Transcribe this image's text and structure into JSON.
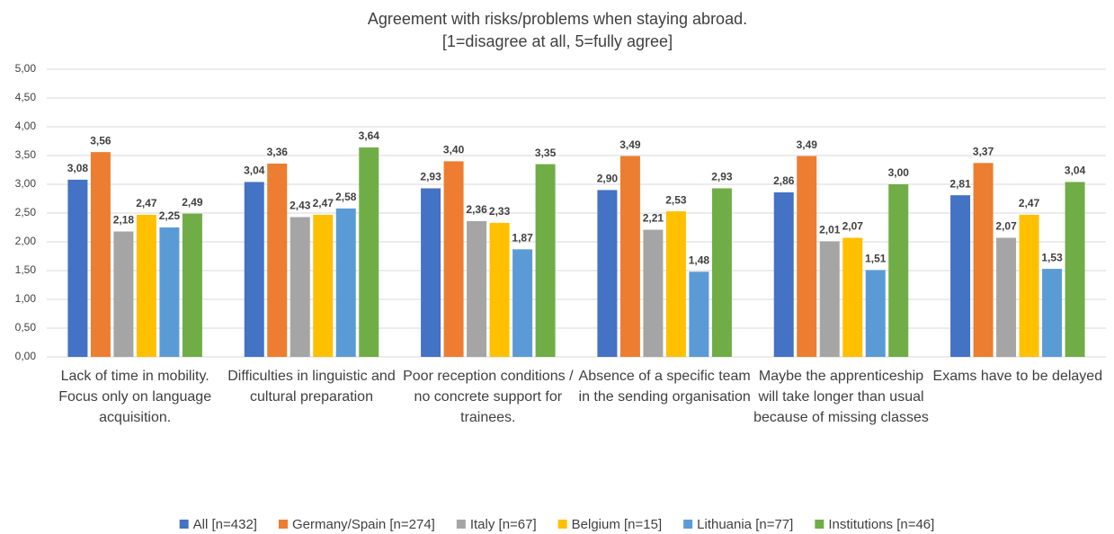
{
  "chart_data": {
    "type": "bar",
    "title": "Agreement with risks/problems when staying abroad.",
    "subtitle": "[1=disagree at all, 5=fully agree]",
    "categories": [
      "Lack of time in mobility. Focus only on language acquisition.",
      "Difficulties in linguistic and cultural preparation",
      "Poor reception conditions / no concrete support for trainees.",
      "Absence of a specific team in the sending organisation",
      "Maybe the apprenticeship will take longer than usual because of missing classes",
      "Exams have to be delayed"
    ],
    "series": [
      {
        "name": "All [n=432]",
        "color": "#4472c4",
        "values": [
          3.08,
          3.04,
          2.93,
          2.9,
          2.86,
          2.81
        ],
        "value_labels": [
          "3,08",
          "3,04",
          "2,93",
          "2,90",
          "2,86",
          "2,81"
        ]
      },
      {
        "name": "Germany/Spain [n=274]",
        "color": "#ed7d31",
        "values": [
          3.56,
          3.36,
          3.4,
          3.49,
          3.49,
          3.37
        ],
        "value_labels": [
          "3,56",
          "3,36",
          "3,40",
          "3,49",
          "3,49",
          "3,37"
        ]
      },
      {
        "name": "Italy [n=67]",
        "color": "#a5a5a5",
        "values": [
          2.18,
          2.43,
          2.36,
          2.21,
          2.01,
          2.07
        ],
        "value_labels": [
          "2,18",
          "2,43",
          "2,36",
          "2,21",
          "2,01",
          "2,07"
        ]
      },
      {
        "name": "Belgium [n=15]",
        "color": "#ffc000",
        "values": [
          2.47,
          2.47,
          2.33,
          2.53,
          2.07,
          2.47
        ],
        "value_labels": [
          "2,47",
          "2,47",
          "2,33",
          "2,53",
          "2,07",
          "2,47"
        ]
      },
      {
        "name": "Lithuania [n=77]",
        "color": "#5b9bd5",
        "values": [
          2.25,
          2.58,
          1.87,
          1.48,
          1.51,
          1.53
        ],
        "value_labels": [
          "2,25",
          "2,58",
          "1,87",
          "1,48",
          "1,51",
          "1,53"
        ]
      },
      {
        "name": "Institutions [n=46]",
        "color": "#70ad47",
        "values": [
          2.49,
          3.64,
          3.35,
          2.93,
          3.0,
          3.04
        ],
        "value_labels": [
          "2,49",
          "3,64",
          "3,35",
          "2,93",
          "3,00",
          "3,04"
        ]
      }
    ],
    "ylim": [
      0,
      5
    ],
    "yticks": [
      {
        "value": 0,
        "label": "0,00"
      },
      {
        "value": 0.5,
        "label": "0,50"
      },
      {
        "value": 1,
        "label": "1,00"
      },
      {
        "value": 1.5,
        "label": "1,50"
      },
      {
        "value": 2,
        "label": "2,00"
      },
      {
        "value": 2.5,
        "label": "2,50"
      },
      {
        "value": 3,
        "label": "3,00"
      },
      {
        "value": 3.5,
        "label": "3,50"
      },
      {
        "value": 4,
        "label": "4,00"
      },
      {
        "value": 4.5,
        "label": "4,50"
      },
      {
        "value": 5,
        "label": "5,00"
      }
    ],
    "grid": true,
    "legend": "bottom"
  }
}
